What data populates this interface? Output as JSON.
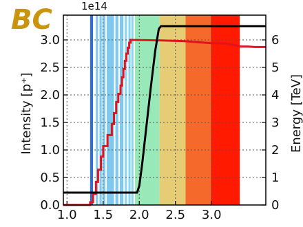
{
  "logo_text": "BC",
  "chart_data": {
    "type": "line",
    "title": "",
    "xlabel": "",
    "ylabel": "Intensity [p⁺]",
    "y2label": "Energy [TeV]",
    "y_exponent": "1e14",
    "xlim": [
      0.95,
      3.75
    ],
    "ylim": [
      0.0,
      3.45
    ],
    "y2lim": [
      0.0,
      6.9
    ],
    "xticks": [
      "1.0",
      "1.5",
      "2.0",
      "2.5",
      "3.0"
    ],
    "xtick_values": [
      1.0,
      1.5,
      2.0,
      2.5,
      3.0
    ],
    "yticks": [
      "0.0",
      "0.5",
      "1.0",
      "1.5",
      "2.0",
      "2.5",
      "3.0"
    ],
    "ytick_values": [
      0.0,
      0.5,
      1.0,
      1.5,
      2.0,
      2.5,
      3.0
    ],
    "y2ticks": [
      "0",
      "1",
      "2",
      "3",
      "4",
      "5",
      "6"
    ],
    "y2tick_values": [
      0,
      1,
      2,
      3,
      4,
      5,
      6
    ],
    "grid": true,
    "bands": [
      {
        "x0": 1.32,
        "x1": 1.36,
        "color": "#2f6fd8"
      },
      {
        "x0": 1.4,
        "x1": 1.43,
        "color": "#7fc8ee"
      },
      {
        "x0": 1.45,
        "x1": 1.48,
        "color": "#7fc8ee"
      },
      {
        "x0": 1.49,
        "x1": 1.53,
        "color": "#7fc8ee"
      },
      {
        "x0": 1.55,
        "x1": 1.65,
        "color": "#7fc8ee"
      },
      {
        "x0": 1.67,
        "x1": 1.71,
        "color": "#7fc8ee"
      },
      {
        "x0": 1.73,
        "x1": 1.78,
        "color": "#7fc8ee"
      },
      {
        "x0": 1.8,
        "x1": 1.83,
        "color": "#8ed6ef"
      },
      {
        "x0": 1.85,
        "x1": 1.88,
        "color": "#8ed6ef"
      },
      {
        "x0": 1.89,
        "x1": 1.92,
        "color": "#8ed6ef"
      },
      {
        "x0": 1.94,
        "x1": 2.28,
        "color": "#98e8b8"
      },
      {
        "x0": 2.28,
        "x1": 2.64,
        "color": "#e6cc74"
      },
      {
        "x0": 2.64,
        "x1": 2.99,
        "color": "#f56a2a"
      },
      {
        "x0": 2.99,
        "x1": 3.39,
        "color": "#ff1a00"
      }
    ],
    "series": [
      {
        "axis": "left",
        "color": "#e0141e",
        "x": [
          0.95,
          1.32,
          1.32,
          1.36,
          1.36,
          1.4,
          1.4,
          1.43,
          1.43,
          1.47,
          1.47,
          1.5,
          1.5,
          1.56,
          1.56,
          1.62,
          1.62,
          1.65,
          1.65,
          1.68,
          1.68,
          1.71,
          1.71,
          1.74,
          1.74,
          1.76,
          1.76,
          1.78,
          1.78,
          1.8,
          1.8,
          1.82,
          1.82,
          1.84,
          1.84,
          1.86,
          1.86,
          1.88,
          1.88,
          2.3,
          2.6,
          2.7,
          2.8,
          2.9,
          3.0,
          3.1,
          3.2,
          3.3,
          3.4,
          3.5,
          3.6,
          3.75
        ],
        "y": [
          0.0,
          0.0,
          0.05,
          0.05,
          0.2,
          0.2,
          0.42,
          0.42,
          0.64,
          0.64,
          0.88,
          0.88,
          1.07,
          1.07,
          1.27,
          1.27,
          1.47,
          1.47,
          1.67,
          1.67,
          1.87,
          1.87,
          2.02,
          2.02,
          2.17,
          2.17,
          2.32,
          2.32,
          2.47,
          2.47,
          2.62,
          2.62,
          2.75,
          2.75,
          2.86,
          2.86,
          2.95,
          2.95,
          3.0,
          2.99,
          2.98,
          2.97,
          2.96,
          2.95,
          2.94,
          2.94,
          2.93,
          2.91,
          2.88,
          2.88,
          2.87,
          2.87
        ]
      },
      {
        "axis": "right",
        "color": "#000000",
        "x": [
          0.95,
          1.97,
          2.0,
          2.04,
          2.1,
          2.16,
          2.22,
          2.27,
          2.3,
          3.75
        ],
        "y": [
          0.45,
          0.45,
          0.7,
          1.5,
          2.9,
          4.3,
          5.6,
          6.4,
          6.5,
          6.5
        ]
      }
    ]
  }
}
